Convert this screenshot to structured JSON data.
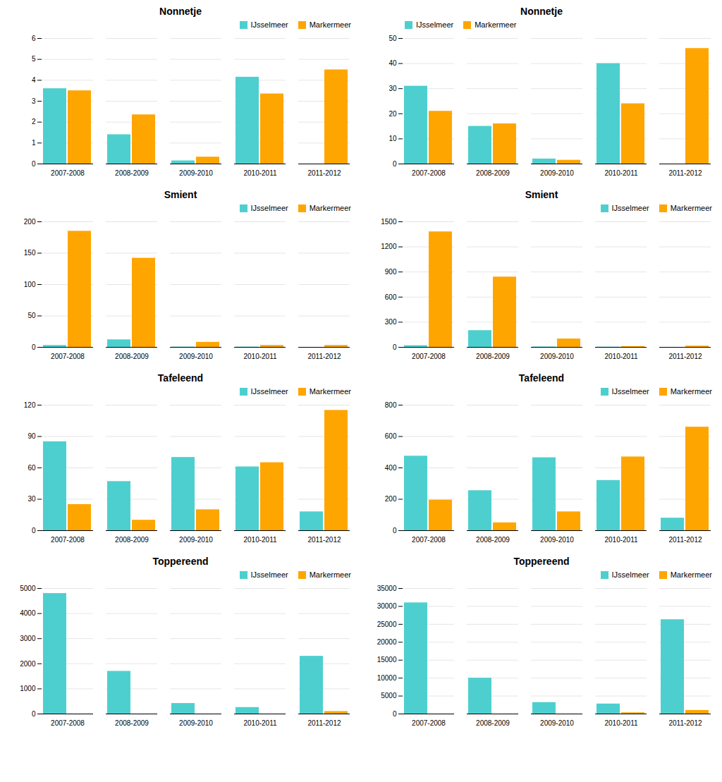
{
  "chart_data": [
    {
      "type": "bar",
      "title": "Nonnetje",
      "categories": [
        "2007-2008",
        "2008-2009",
        "2009-2010",
        "2010-2011",
        "2011-2012"
      ],
      "series": [
        {
          "name": "IJsselmeer",
          "color": "#4ECFCF",
          "values": [
            3.6,
            1.4,
            0.15,
            4.15,
            0.0
          ]
        },
        {
          "name": "Markermeer",
          "color": "#FFA500",
          "values": [
            3.5,
            2.35,
            0.33,
            3.35,
            4.5
          ]
        }
      ],
      "ylim": [
        0,
        6
      ],
      "yticks": [
        0,
        1,
        2,
        3,
        4,
        5,
        6
      ],
      "grid": true,
      "legend": "upper right"
    },
    {
      "type": "bar",
      "title": "Nonnetje",
      "categories": [
        "2007-2008",
        "2008-2009",
        "2009-2010",
        "2010-2011",
        "2011-2012"
      ],
      "series": [
        {
          "name": "IJsselmeer",
          "color": "#4ECFCF",
          "values": [
            31,
            15,
            2,
            40,
            0.0
          ]
        },
        {
          "name": "Markermeer",
          "color": "#FFA500",
          "values": [
            21,
            16,
            1.5,
            24,
            46
          ]
        }
      ],
      "ylim": [
        0,
        50
      ],
      "yticks": [
        0,
        10,
        20,
        30,
        40,
        50
      ],
      "grid": true,
      "legend": "upper left"
    },
    {
      "type": "bar",
      "title": "Smient",
      "categories": [
        "2007-2008",
        "2008-2009",
        "2009-2010",
        "2010-2011",
        "2011-2012"
      ],
      "series": [
        {
          "name": "IJsselmeer",
          "color": "#4ECFCF",
          "values": [
            3,
            12,
            0.5,
            0.5,
            0.0
          ]
        },
        {
          "name": "Markermeer",
          "color": "#FFA500",
          "values": [
            185,
            142,
            8,
            3,
            3
          ]
        }
      ],
      "ylim": [
        0,
        200
      ],
      "yticks": [
        0,
        50,
        100,
        150,
        200
      ],
      "grid": true,
      "legend": "upper right"
    },
    {
      "type": "bar",
      "title": "Smient",
      "categories": [
        "2007-2008",
        "2008-2009",
        "2009-2010",
        "2010-2011",
        "2011-2012"
      ],
      "series": [
        {
          "name": "IJsselmeer",
          "color": "#4ECFCF",
          "values": [
            20,
            200,
            5,
            3,
            0.0
          ]
        },
        {
          "name": "Markermeer",
          "color": "#FFA500",
          "values": [
            1380,
            840,
            100,
            10,
            15
          ]
        }
      ],
      "ylim": [
        0,
        1500
      ],
      "yticks": [
        0,
        300,
        600,
        900,
        1200,
        1500
      ],
      "grid": true,
      "legend": "upper right"
    },
    {
      "type": "bar",
      "title": "Tafeleend",
      "categories": [
        "2007-2008",
        "2008-2009",
        "2009-2010",
        "2010-2011",
        "2011-2012"
      ],
      "series": [
        {
          "name": "IJsselmeer",
          "color": "#4ECFCF",
          "values": [
            85,
            47,
            70,
            61,
            18
          ]
        },
        {
          "name": "Markermeer",
          "color": "#FFA500",
          "values": [
            25,
            10,
            20,
            65,
            115
          ]
        }
      ],
      "ylim": [
        0,
        120
      ],
      "yticks": [
        0,
        30,
        60,
        90,
        120
      ],
      "grid": true,
      "legend": "upper right"
    },
    {
      "type": "bar",
      "title": "Tafeleend",
      "categories": [
        "2007-2008",
        "2008-2009",
        "2009-2010",
        "2010-2011",
        "2011-2012"
      ],
      "series": [
        {
          "name": "IJsselmeer",
          "color": "#4ECFCF",
          "values": [
            475,
            255,
            465,
            320,
            80
          ]
        },
        {
          "name": "Markermeer",
          "color": "#FFA500",
          "values": [
            195,
            50,
            120,
            470,
            660
          ]
        }
      ],
      "ylim": [
        0,
        800
      ],
      "yticks": [
        0,
        200,
        400,
        600,
        800
      ],
      "grid": true,
      "legend": "upper right"
    },
    {
      "type": "bar",
      "title": "Toppereend",
      "categories": [
        "2007-2008",
        "2008-2009",
        "2009-2010",
        "2010-2011",
        "2011-2012"
      ],
      "series": [
        {
          "name": "IJsselmeer",
          "color": "#4ECFCF",
          "values": [
            4800,
            1700,
            420,
            260,
            2300
          ]
        },
        {
          "name": "Markermeer",
          "color": "#FFA500",
          "values": [
            0.0,
            0.0,
            0.0,
            0.0,
            100
          ]
        }
      ],
      "ylim": [
        0,
        5000
      ],
      "yticks": [
        0,
        1000,
        2000,
        3000,
        4000,
        5000
      ],
      "grid": true,
      "legend": "upper right"
    },
    {
      "type": "bar",
      "title": "Toppereend",
      "categories": [
        "2007-2008",
        "2008-2009",
        "2009-2010",
        "2010-2011",
        "2011-2012"
      ],
      "series": [
        {
          "name": "IJsselmeer",
          "color": "#4ECFCF",
          "values": [
            31000,
            10000,
            3200,
            2800,
            26300
          ]
        },
        {
          "name": "Markermeer",
          "color": "#FFA500",
          "values": [
            0.0,
            0.0,
            0.0,
            350,
            1000
          ]
        }
      ],
      "ylim": [
        0,
        35000
      ],
      "yticks": [
        0,
        5000,
        10000,
        15000,
        20000,
        25000,
        30000,
        35000
      ],
      "grid": true,
      "legend": "upper right"
    }
  ]
}
